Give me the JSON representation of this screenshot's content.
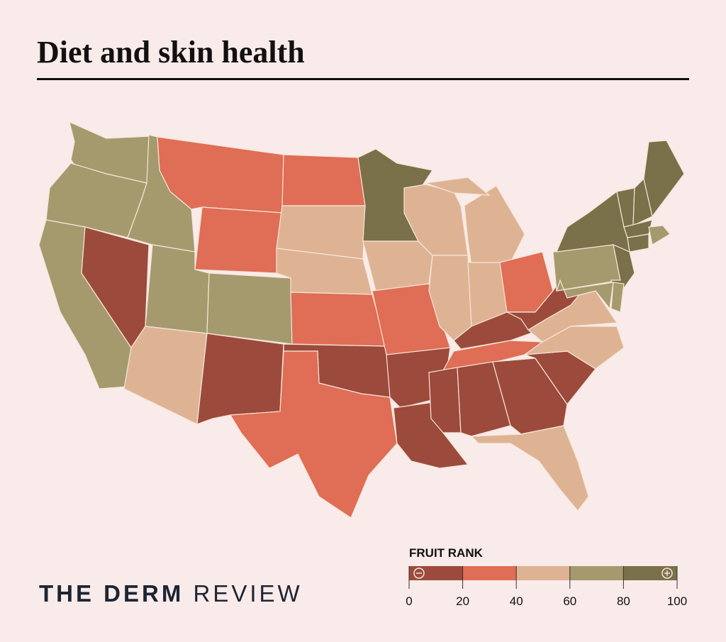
{
  "title": "Diet and skin health",
  "logo": {
    "part1": "THE DERM",
    "part2": "REVIEW"
  },
  "chart_data": {
    "type": "choropleth",
    "legend_title": "FRUIT RANK",
    "bins": [
      {
        "range": [
          0,
          20
        ],
        "color": "#9c4a3c"
      },
      {
        "range": [
          20,
          40
        ],
        "color": "#e06d55"
      },
      {
        "range": [
          40,
          60
        ],
        "color": "#deb394"
      },
      {
        "range": [
          60,
          80
        ],
        "color": "#a59a6e"
      },
      {
        "range": [
          80,
          100
        ],
        "color": "#7a7049"
      }
    ],
    "tick_labels": [
      "0",
      "20",
      "40",
      "60",
      "80",
      "100"
    ],
    "legend_icons": [
      "minus-circle-icon",
      "plus-circle-icon"
    ],
    "legend_placement": "bottom-right",
    "states": {
      "NV": 0,
      "NM": 0,
      "OK": 0,
      "AR": 0,
      "LA": 0,
      "MS": 0,
      "AL": 0,
      "GA": 0,
      "SC": 0,
      "KY": 0,
      "WV": 0,
      "MT": 1,
      "WY": 1,
      "ND": 1,
      "KS": 1,
      "MO": 1,
      "TX": 1,
      "TN": 1,
      "OH": 1,
      "AZ": 2,
      "SD": 2,
      "NE": 2,
      "IA": 2,
      "WI": 2,
      "MI": 2,
      "IL": 2,
      "IN": 2,
      "VA": 2,
      "NC": 2,
      "FL": 2,
      "WA": 3,
      "OR": 3,
      "ID": 3,
      "CA": 3,
      "UT": 3,
      "CO": 3,
      "PA": 3,
      "MD": 3,
      "DE": 3,
      "RI": 3,
      "MN": 4,
      "NY": 4,
      "VT": 4,
      "NH": 4,
      "ME": 4,
      "MA": 4,
      "CT": 4,
      "NJ": 4
    }
  }
}
